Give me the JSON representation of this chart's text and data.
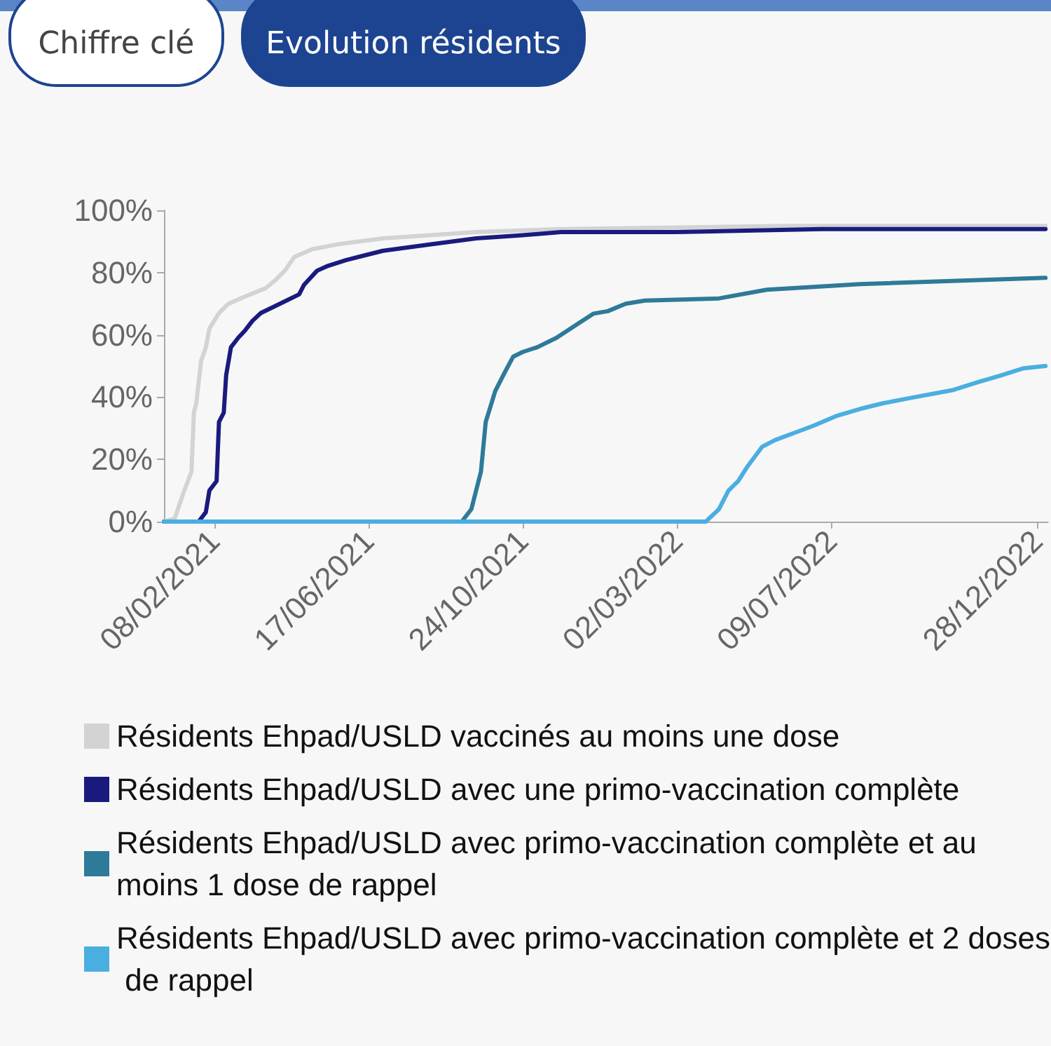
{
  "chart_data": {
    "type": "line",
    "annotations": [
      "Chiffre clé",
      "Evolution résidents"
    ],
    "xlim": [
      "2020-12-28",
      "2023-01-06"
    ],
    "xticks": [
      {
        "value": "2021-02-08",
        "label": "08/02/2021"
      },
      {
        "value": "2021-06-17",
        "label": "17/06/2021"
      },
      {
        "value": "2021-10-24",
        "label": "24/10/2021"
      },
      {
        "value": "2022-03-02",
        "label": "02/03/2022"
      },
      {
        "value": "2022-07-09",
        "label": "09/07/2022"
      },
      {
        "value": "2022-12-28",
        "label": "28/12/2022"
      }
    ],
    "ylim": [
      0,
      100
    ],
    "yticks": [
      {
        "value": 0,
        "label": "0%"
      },
      {
        "value": 20,
        "label": "20%"
      },
      {
        "value": 40,
        "label": "40%"
      },
      {
        "value": 60,
        "label": "60%"
      },
      {
        "value": 80,
        "label": "80%"
      },
      {
        "value": 100,
        "label": "100%"
      }
    ],
    "grid": false,
    "legend": "bottom",
    "marker": "none",
    "line_style": "solid",
    "series": [
      {
        "name": "Résidents Ehpad/USLD vaccinés au moins une dose",
        "color": "#d3d3d3",
        "x": [
          "2020-12-28",
          "2021-01-06",
          "2021-01-14",
          "2021-01-20",
          "2021-01-22",
          "2021-01-24",
          "2021-01-28",
          "2021-02-01",
          "2021-02-04",
          "2021-02-12",
          "2021-02-20",
          "2021-03-04",
          "2021-03-23",
          "2021-03-31",
          "2021-04-08",
          "2021-04-16",
          "2021-05-01",
          "2021-05-21",
          "2021-06-29",
          "2021-08-07",
          "2021-09-15",
          "2021-11-25",
          "2022-06-01",
          "2023-01-04"
        ],
        "values": [
          0,
          1,
          10,
          16,
          35,
          38,
          51.5,
          56,
          62,
          67,
          70,
          72,
          75,
          77.5,
          80.6,
          85,
          87.5,
          89,
          91,
          92,
          93,
          94,
          95,
          95
        ]
      },
      {
        "name": "Résidents Ehpad/USLD avec une primo-vaccination complète",
        "color": "#1a1a7e",
        "x": [
          "2020-12-28",
          "2021-01-26",
          "2021-02-01",
          "2021-02-04",
          "2021-02-10",
          "2021-02-12",
          "2021-02-16",
          "2021-02-18",
          "2021-02-22",
          "2021-02-28",
          "2021-03-06",
          "2021-03-12",
          "2021-03-19",
          "2021-04-04",
          "2021-04-20",
          "2021-04-24",
          "2021-05-05",
          "2021-05-13",
          "2021-05-29",
          "2021-06-29",
          "2021-08-07",
          "2021-09-15",
          "2021-10-24",
          "2021-11-25",
          "2022-03-01",
          "2022-07-01",
          "2023-01-04"
        ],
        "values": [
          0,
          0,
          3,
          10,
          13,
          32,
          35,
          47,
          56,
          59,
          61.5,
          64.5,
          67,
          70,
          73,
          76,
          80.6,
          82,
          84,
          87,
          89,
          91,
          92,
          93,
          93,
          94,
          94
        ]
      },
      {
        "name": "Résidents Ehpad/USLD avec primo-vaccination complète et au moins 1 dose de rappel",
        "color": "#2e7a99",
        "x": [
          "2020-12-28",
          "2021-09-03",
          "2021-09-11",
          "2021-09-15",
          "2021-09-19",
          "2021-09-23",
          "2021-10-01",
          "2021-10-09",
          "2021-10-16",
          "2021-10-24",
          "2021-11-05",
          "2021-11-21",
          "2021-12-10",
          "2021-12-22",
          "2022-01-03",
          "2022-01-18",
          "2022-02-03",
          "2022-04-06",
          "2022-05-16",
          "2022-08-02",
          "2023-01-04"
        ],
        "values": [
          0,
          0,
          4,
          10,
          16,
          32,
          42,
          48,
          53,
          54.5,
          56,
          59,
          63.8,
          66.8,
          67.6,
          70,
          71,
          71.7,
          74.5,
          76.3,
          78.3
        ]
      },
      {
        "name": "Résidents Ehpad/USLD avec primo-vaccination complète et 2 doses de rappel",
        "color": "#4baee0",
        "x": [
          "2020-12-28",
          "2022-03-26",
          "2022-04-06",
          "2022-04-14",
          "2022-04-22",
          "2022-04-30",
          "2022-05-12",
          "2022-05-23",
          "2022-06-08",
          "2022-06-24",
          "2022-07-13",
          "2022-08-02",
          "2022-08-21",
          "2022-09-10",
          "2022-10-19",
          "2022-11-07",
          "2022-11-27",
          "2022-12-16",
          "2023-01-04"
        ],
        "values": [
          0,
          0,
          4,
          10,
          13,
          17.8,
          24,
          26.2,
          28.5,
          30.8,
          33.9,
          36.2,
          38,
          39.5,
          42.3,
          44.6,
          46.9,
          49.2,
          50
        ]
      }
    ]
  }
}
